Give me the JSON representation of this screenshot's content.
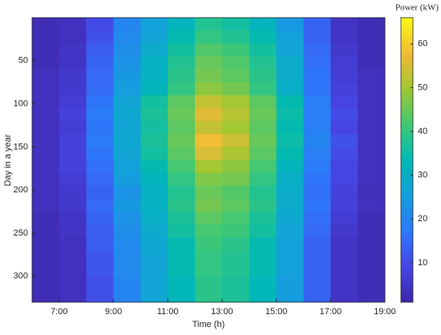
{
  "chart_data": {
    "type": "heatmap",
    "colorbar_title": "Power (kW)",
    "xlabel": "Time (h)",
    "ylabel": "Day in a year",
    "colormap": "parula",
    "xbins": [
      6,
      7,
      8,
      9,
      10,
      11,
      12,
      13,
      14,
      15,
      16,
      17,
      18,
      19
    ],
    "ybins": [
      0,
      15,
      30,
      45,
      60,
      75,
      90,
      105,
      120,
      135,
      150,
      165,
      180,
      195,
      210,
      225,
      240,
      255,
      270,
      285,
      300,
      315,
      330
    ],
    "xlim": [
      6,
      19
    ],
    "ylim": [
      0,
      330
    ],
    "clim": [
      1,
      66
    ],
    "xticks": [
      {
        "value": 7,
        "label": "7:00"
      },
      {
        "value": 9,
        "label": "9:00"
      },
      {
        "value": 11,
        "label": "11:00"
      },
      {
        "value": 13,
        "label": "13:00"
      },
      {
        "value": 15,
        "label": "15:00"
      },
      {
        "value": 17,
        "label": "17:00"
      },
      {
        "value": 19,
        "label": "19:00"
      }
    ],
    "yticks": [
      50,
      100,
      150,
      200,
      250,
      300
    ],
    "cticks": [
      10,
      20,
      30,
      40,
      50,
      60
    ],
    "z": [
      [
        3,
        4,
        10,
        20,
        26,
        32,
        38,
        36,
        32,
        24,
        14,
        5,
        3
      ],
      [
        3,
        4,
        11,
        21,
        27,
        34,
        40,
        38,
        34,
        26,
        14,
        5,
        3
      ],
      [
        3,
        5,
        13,
        22,
        29,
        36,
        43,
        41,
        36,
        27,
        15,
        6,
        3
      ],
      [
        3,
        5,
        14,
        23,
        31,
        38,
        45,
        43,
        38,
        29,
        16,
        7,
        3
      ],
      [
        4,
        6,
        15,
        24,
        31,
        39,
        46,
        44,
        39,
        29,
        17,
        7,
        4
      ],
      [
        4,
        6,
        15,
        25,
        32,
        40,
        48,
        46,
        40,
        30,
        17,
        8,
        4
      ],
      [
        4,
        7,
        17,
        27,
        36,
        44,
        53,
        50,
        44,
        34,
        19,
        9,
        4
      ],
      [
        4,
        8,
        18,
        28,
        37,
        45,
        56,
        52,
        45,
        35,
        19,
        10,
        4
      ],
      [
        4,
        7,
        17,
        27,
        36,
        44,
        53,
        50,
        44,
        34,
        19,
        9,
        4
      ],
      [
        4,
        8,
        18,
        28,
        37,
        45,
        58,
        54,
        45,
        35,
        20,
        11,
        4
      ],
      [
        4,
        8,
        17,
        27,
        36,
        44,
        55,
        51,
        44,
        34,
        19,
        10,
        4
      ],
      [
        4,
        8,
        16,
        26,
        34,
        42,
        50,
        48,
        42,
        32,
        18,
        9,
        4
      ],
      [
        4,
        7,
        15,
        25,
        32,
        40,
        47,
        46,
        40,
        30,
        17,
        9,
        4
      ],
      [
        4,
        6,
        14,
        23,
        31,
        38,
        45,
        43,
        38,
        29,
        16,
        8,
        3
      ],
      [
        4,
        6,
        15,
        24,
        31,
        39,
        46,
        44,
        39,
        29,
        17,
        8,
        4
      ],
      [
        3,
        5,
        14,
        23,
        30,
        37,
        44,
        42,
        37,
        28,
        16,
        7,
        3
      ],
      [
        3,
        5,
        13,
        22,
        29,
        36,
        42,
        41,
        36,
        27,
        15,
        6,
        3
      ],
      [
        3,
        4,
        13,
        21,
        28,
        34,
        41,
        39,
        34,
        26,
        14,
        5,
        3
      ],
      [
        3,
        4,
        12,
        21,
        27,
        34,
        40,
        38,
        34,
        26,
        14,
        5,
        3
      ],
      [
        3,
        4,
        12,
        21,
        27,
        34,
        40,
        38,
        34,
        26,
        14,
        5,
        3
      ],
      [
        3,
        4,
        11,
        20,
        27,
        33,
        39,
        37,
        33,
        25,
        14,
        5,
        3
      ],
      [
        3,
        4,
        11,
        20,
        27,
        33,
        39,
        37,
        33,
        25,
        14,
        5,
        3
      ]
    ]
  }
}
